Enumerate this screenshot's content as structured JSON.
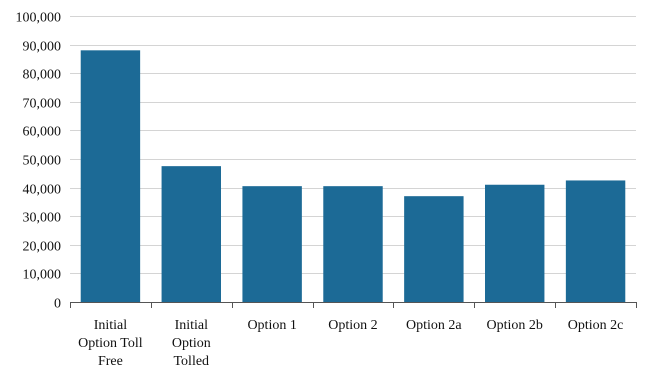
{
  "chart_data": {
    "type": "bar",
    "title": "",
    "xlabel": "",
    "ylabel": "",
    "categories": [
      [
        "Initial",
        "Option Toll",
        "Free"
      ],
      [
        "Initial",
        "Option",
        "Tolled"
      ],
      [
        "Option 1"
      ],
      [
        "Option 2"
      ],
      [
        "Option 2a"
      ],
      [
        "Option 2b"
      ],
      [
        "Option 2c"
      ]
    ],
    "values": [
      88000,
      47500,
      40500,
      40500,
      37000,
      41000,
      42500
    ],
    "ylim": [
      0,
      100000
    ],
    "yticks": [
      0,
      10000,
      20000,
      30000,
      40000,
      50000,
      60000,
      70000,
      80000,
      90000,
      100000
    ],
    "ytick_labels": [
      "0",
      "10,000",
      "20,000",
      "30,000",
      "40,000",
      "50,000",
      "60,000",
      "70,000",
      "80,000",
      "90,000",
      "100,000"
    ],
    "grid": true,
    "legend": "none",
    "bar_color": "#1c6a96"
  }
}
